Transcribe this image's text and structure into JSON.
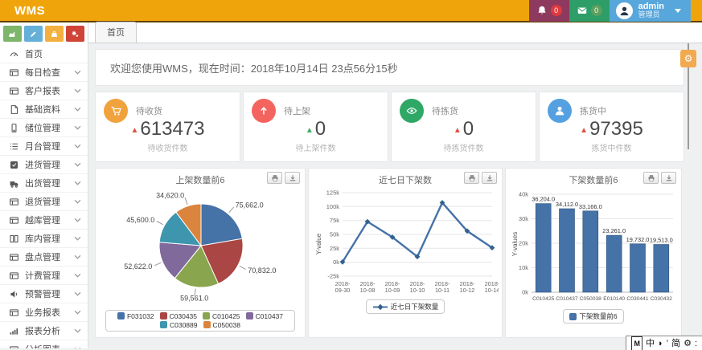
{
  "topbar": {
    "title": "WMS",
    "bell_count": "0",
    "mail_count": "0",
    "username": "admin",
    "role": "管理员"
  },
  "quick_buttons": [
    {
      "name": "chart-area",
      "color": "#7db56a"
    },
    {
      "name": "pencil",
      "color": "#64b0d8"
    },
    {
      "name": "bag",
      "color": "#f3b03f"
    },
    {
      "name": "gears",
      "color": "#cf4436"
    }
  ],
  "sidebar": {
    "items": [
      {
        "name": "home",
        "label": "首页",
        "icon": "gauge",
        "expandable": false
      },
      {
        "name": "daily-check",
        "label": "每日检查",
        "icon": "card",
        "expandable": true
      },
      {
        "name": "customer-report",
        "label": "客户报表",
        "icon": "card",
        "expandable": true
      },
      {
        "name": "base-data",
        "label": "基础资料",
        "icon": "file",
        "expandable": true
      },
      {
        "name": "storage-location",
        "label": "储位管理",
        "icon": "mobile",
        "expandable": true
      },
      {
        "name": "dock",
        "label": "月台管理",
        "icon": "list",
        "expandable": true
      },
      {
        "name": "inbound",
        "label": "进货管理",
        "icon": "check-square",
        "expandable": true
      },
      {
        "name": "outbound",
        "label": "出货管理",
        "icon": "truck",
        "expandable": true
      },
      {
        "name": "returns",
        "label": "退货管理",
        "icon": "card",
        "expandable": true
      },
      {
        "name": "cross-dock",
        "label": "越库管理",
        "icon": "card",
        "expandable": true
      },
      {
        "name": "in-warehouse",
        "label": "库内管理",
        "icon": "columns",
        "expandable": true
      },
      {
        "name": "stocktake",
        "label": "盘点管理",
        "icon": "card",
        "expandable": true
      },
      {
        "name": "billing",
        "label": "计费管理",
        "icon": "card",
        "expandable": true
      },
      {
        "name": "alerts",
        "label": "预警管理",
        "icon": "volume",
        "expandable": true
      },
      {
        "name": "business-report",
        "label": "业务报表",
        "icon": "card",
        "expandable": true
      },
      {
        "name": "report-analysis",
        "label": "报表分析",
        "icon": "chart-bar",
        "expandable": true
      },
      {
        "name": "analysis-chart",
        "label": "分析图表",
        "icon": "card",
        "expandable": true
      }
    ]
  },
  "tabs": [
    {
      "label": "首页",
      "active": true
    }
  ],
  "welcome": {
    "text": "欢迎您使用WMS，现在时间：2018年10月14日 23点56分15秒"
  },
  "stats": [
    {
      "name": "pending-receipt",
      "label": "待收货",
      "value": "613473",
      "subtitle": "待收货件数",
      "arrow": "▲",
      "arrow_color": "#e05046",
      "icon": "cart",
      "icon_color": "#f0a23c"
    },
    {
      "name": "pending-shelving",
      "label": "待上架",
      "value": "0",
      "subtitle": "待上架件数",
      "arrow": "▲",
      "arrow_color": "#3fae62",
      "icon": "arrow-up",
      "icon_color": "#f4645f"
    },
    {
      "name": "pending-picking",
      "label": "待拣货",
      "value": "0",
      "subtitle": "待拣货件数",
      "arrow": "▲",
      "arrow_color": "#e05046",
      "icon": "eye",
      "icon_color": "#2fa866"
    },
    {
      "name": "picking",
      "label": "拣货中",
      "value": "97395",
      "subtitle": "拣货中件数",
      "arrow": "▲",
      "arrow_color": "#e05046",
      "icon": "user",
      "icon_color": "#54a0e0"
    }
  ],
  "chart_data": [
    {
      "type": "pie",
      "title": "上架数量前6",
      "labels": [
        "F031032",
        "C030435",
        "C010425",
        "C010437",
        "C030889",
        "C050038"
      ],
      "values": [
        75662,
        70832,
        59561,
        52622,
        45600,
        34620
      ],
      "value_labels": [
        "75,662.0",
        "70,832.0",
        "59,561.0",
        "52,622.0",
        "45,600.0",
        "34,620.0"
      ],
      "colors": [
        "#4572A7",
        "#AA4643",
        "#89A54E",
        "#80699B",
        "#3D96AE",
        "#DB843D"
      ],
      "legend_position": "bottom"
    },
    {
      "type": "line",
      "title": "近七日下架数",
      "x": [
        "2018-09-30",
        "2018-10-08",
        "2018-10-09",
        "2018-10-10",
        "2018-10-11",
        "2018-10-12",
        "2018-10-14"
      ],
      "values": [
        500,
        73000,
        45000,
        10000,
        107000,
        56000,
        26000
      ],
      "ylabel": "Y-value",
      "ylim": [
        -25000,
        125000
      ],
      "ytick_labels": [
        "-25k",
        "0k",
        "25k",
        "50k",
        "75k",
        "100k",
        "125k"
      ],
      "series_name": "近七日下架数量",
      "color": "#4572A7",
      "grid": true,
      "legend_position": "bottom"
    },
    {
      "type": "bar",
      "title": "下架数量前6",
      "categories": [
        "C010425",
        "C010437",
        "C050038",
        "E010140",
        "C030441",
        "C030432"
      ],
      "values": [
        36204,
        34112,
        33166,
        23261,
        19732,
        19513
      ],
      "value_labels": [
        "36,204.0",
        "34,112.0",
        "33,166.0",
        "23,261.0",
        "19,732.0",
        "19,513.0"
      ],
      "ylabel": "Y-values",
      "ylim": [
        0,
        40000
      ],
      "ytick_labels": [
        "0k",
        "10k",
        "20k",
        "30k",
        "40k"
      ],
      "series_name": "下架数量前6",
      "color": "#4572A7",
      "grid": true,
      "legend_position": "bottom"
    }
  ],
  "ime": {
    "items": [
      "M",
      "中",
      "◗",
      "’",
      "简",
      "⚙",
      ":"
    ]
  }
}
